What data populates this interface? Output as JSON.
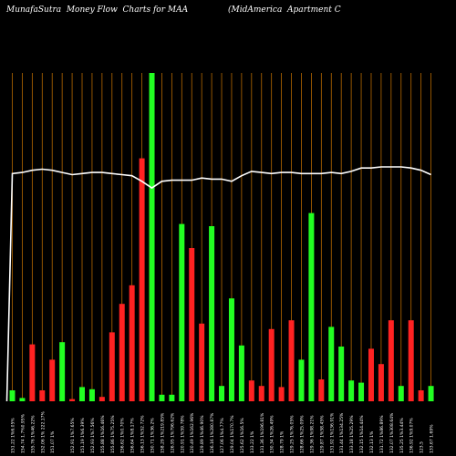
{
  "header": {
    "title_left": "MunafaSutra  Money Flow  Charts for MAA",
    "title_right": "(MidAmerica  Apartment C"
  },
  "colors": {
    "background": "#000000",
    "up_bar": "#22ff22",
    "down_bar": "#ff2222",
    "gridline": "#b86a00",
    "price_line": "#ffffff"
  },
  "chart_data": {
    "type": "bar",
    "y_axis_shown": false,
    "grid": "vertical",
    "categories": [
      "151.22 1%6.05%",
      "154.74 1.7%0.95%",
      "155.76 1%46.22%",
      "152.06 1% 222.17%",
      "151.07 1%",
      "",
      "152.91 1%7.65%",
      "151.19 1%6.39%",
      "152.93 1%7.56%",
      "155.88 1%16.46%",
      "155.86 1%75.25%",
      "156.62 1%0.70%",
      "156.64 1%8.17%",
      "156.13 1%52.72%",
      "150.71 1%36.2%",
      "158.29 1%219.85%",
      "126.95 1%796.62%",
      "120.91 1%59.78%",
      "120.49 1%162.96%",
      "129.89 1%46.90%",
      "126.16 1%280.87%",
      "127.06 1%4.77%",
      "129.04 1%170.7%",
      "125.62 1%16.5%",
      "133.22 1%",
      "131.36 1%196.81%",
      "130.34 1%26.49%",
      "128.79 1%",
      "129.25 1%76.05%",
      "128.66 1%25.09%",
      "129.36 1%98.21%",
      "129.87 1%58.45%",
      "131.92 1%136.91%",
      "131.44 1%134.25%",
      "133.18 1%25.29%",
      "132.15 1%14.44%",
      "132.13 1%",
      "131.72 1%86.89%",
      "132.07 1%308.64%",
      "135.25 1%3.44%",
      "136.92 1%9.07%",
      "123.5",
      "133.67 1.69%"
    ],
    "values": [
      10,
      3,
      52,
      10,
      38,
      54,
      2,
      13,
      11,
      4,
      63,
      89,
      106,
      222,
      300,
      6,
      6,
      162,
      140,
      71,
      160,
      14,
      94,
      51,
      19,
      14,
      66,
      13,
      74,
      38,
      172,
      20,
      68,
      50,
      19,
      17,
      48,
      34,
      74,
      14,
      74,
      10,
      14
    ],
    "directions": [
      "up",
      "up",
      "down",
      "down",
      "down",
      "up",
      "down",
      "up",
      "up",
      "down",
      "down",
      "down",
      "down",
      "down",
      "up",
      "up",
      "up",
      "up",
      "down",
      "down",
      "up",
      "up",
      "up",
      "up",
      "down",
      "down",
      "down",
      "down",
      "down",
      "up",
      "up",
      "down",
      "up",
      "up",
      "up",
      "up",
      "down",
      "down",
      "down",
      "up",
      "down",
      "down",
      "up"
    ],
    "series": [
      {
        "values": [
          206,
          207,
          209,
          210,
          209,
          207,
          205,
          206,
          207,
          207,
          206,
          205,
          204,
          199,
          193,
          199,
          200,
          200,
          200,
          202,
          201,
          201,
          199,
          204,
          208,
          207,
          206,
          207,
          207,
          206,
          206,
          206,
          207,
          206,
          208,
          211,
          211,
          212,
          212,
          212,
          211,
          209,
          205
        ]
      }
    ]
  }
}
